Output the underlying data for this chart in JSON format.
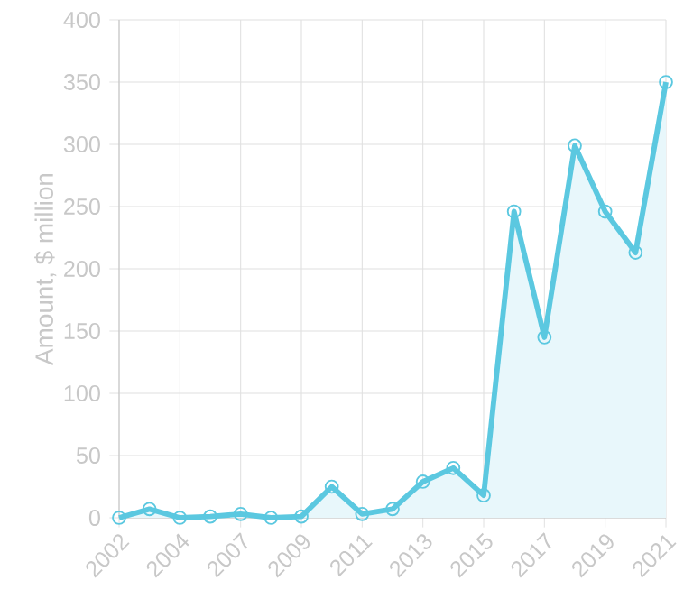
{
  "chart_data": {
    "type": "area",
    "ylabel": "Amount, $ million",
    "categories": [
      "2002",
      null,
      "2004",
      null,
      "2007",
      null,
      "2009",
      null,
      "2011",
      null,
      "2013",
      null,
      "2015",
      null,
      "2017",
      null,
      "2019",
      null,
      "2021"
    ],
    "values": [
      0,
      7,
      0,
      1,
      3,
      0,
      1,
      25,
      3,
      7,
      29,
      40,
      18,
      246,
      145,
      299,
      246,
      213,
      350
    ],
    "color": "#5bc8e0",
    "ylim": [
      0,
      400
    ],
    "yticks": [
      0,
      50,
      100,
      150,
      200,
      250,
      300,
      350,
      400
    ],
    "grid": true,
    "marker": "circle",
    "line_style": "solid"
  }
}
